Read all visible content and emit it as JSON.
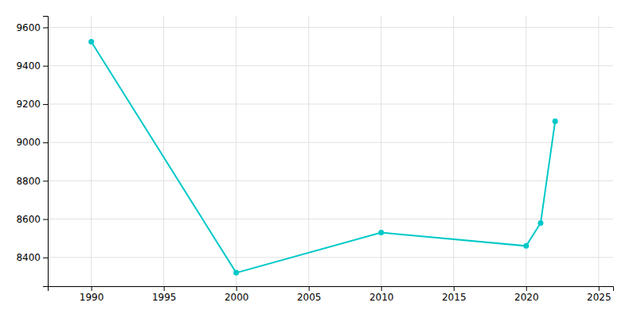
{
  "chart_data": {
    "type": "line",
    "x": [
      1990,
      2000,
      2010,
      2020,
      2021,
      2022
    ],
    "values": [
      9525,
      8320,
      8530,
      8460,
      8580,
      9110
    ],
    "color": "#00c8c8",
    "marker": "circle",
    "xlim": [
      1987,
      2026
    ],
    "ylim": [
      8250,
      9660
    ],
    "xticks": [
      1990,
      1995,
      2000,
      2005,
      2010,
      2015,
      2020,
      2025
    ],
    "yticks": [
      8400,
      8600,
      8800,
      9000,
      9200,
      9400,
      9600
    ],
    "grid": true
  }
}
